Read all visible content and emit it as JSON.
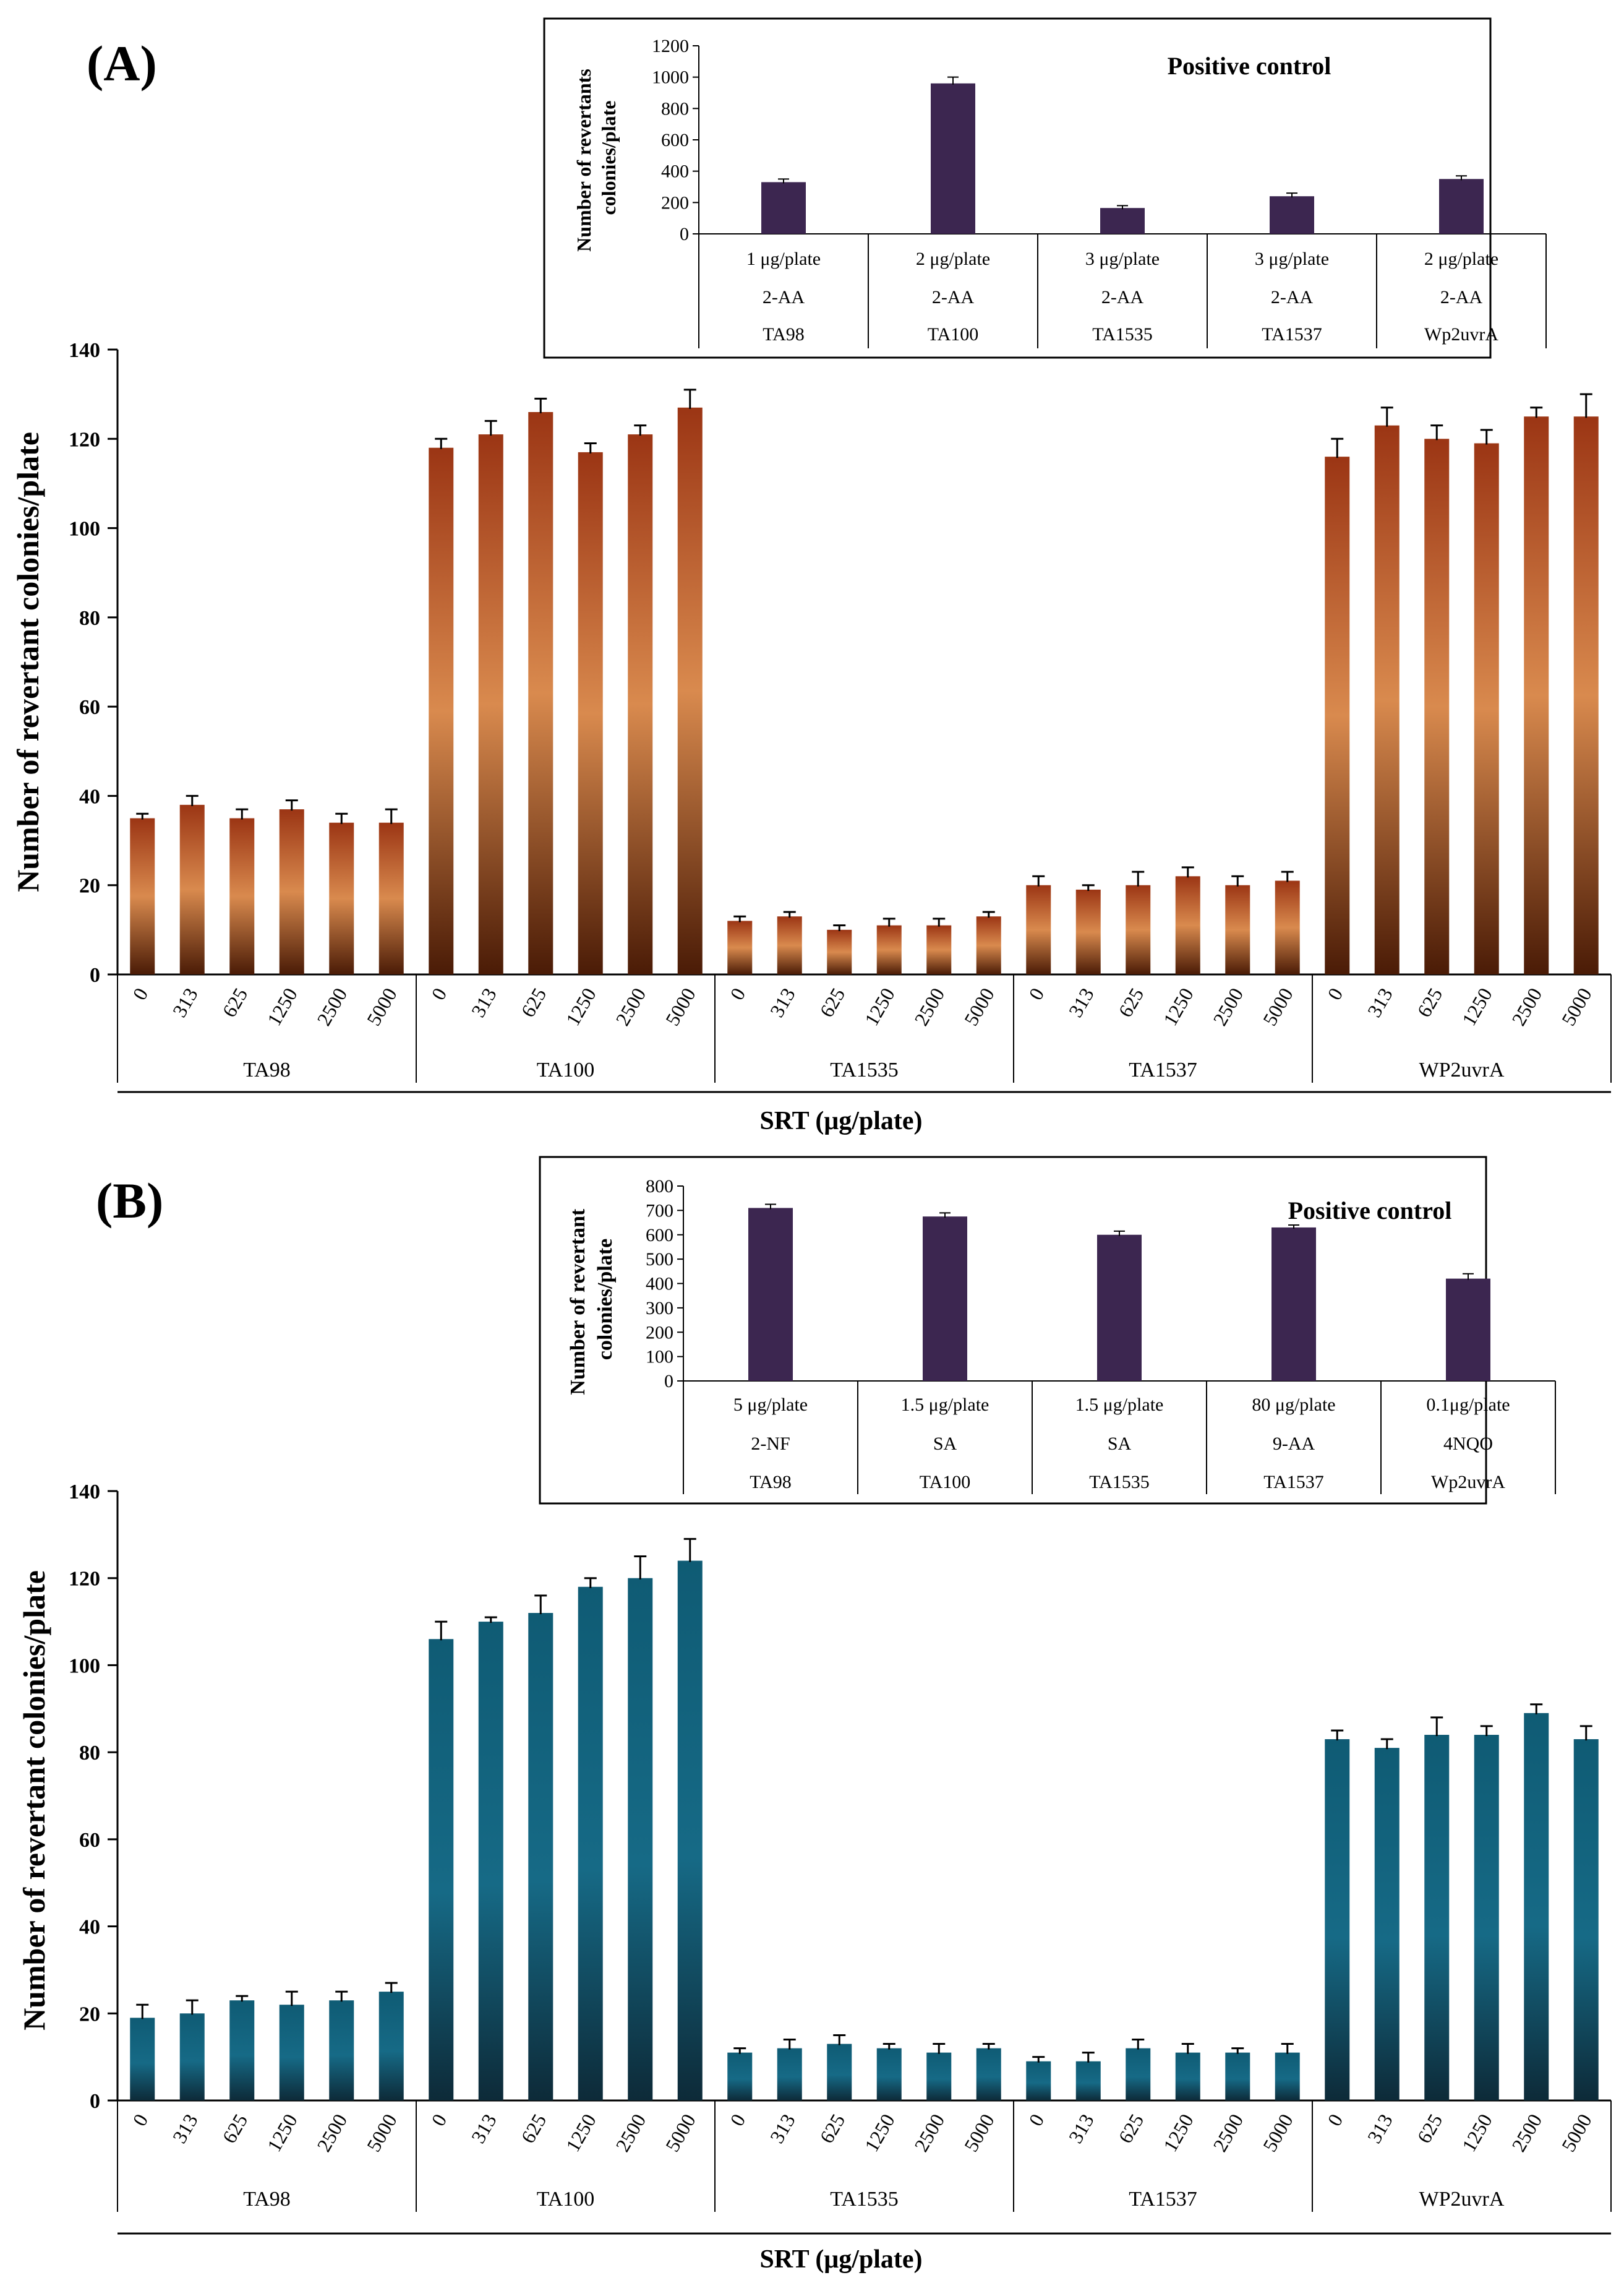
{
  "panels": {
    "A": {
      "letter": "(A)",
      "main": {
        "ylabel": "Number of revertant colonies/plate",
        "xlabel": "SRT (μg/plate)",
        "yticks": [
          0,
          20,
          40,
          60,
          80,
          100,
          120,
          140
        ],
        "ylim": [
          0,
          140
        ]
      },
      "inset": {
        "title": "Positive control",
        "ylabel_line1": "Number  of revertants",
        "ylabel_line2": "colonies/plate",
        "yticks": [
          0,
          200,
          400,
          600,
          800,
          1000,
          1200
        ],
        "ylim": [
          0,
          1200
        ]
      }
    },
    "B": {
      "letter": "(B)",
      "main": {
        "ylabel": "Number of revertant colonies/plate",
        "xlabel": "SRT (μg/plate)",
        "yticks": [
          0,
          20,
          40,
          60,
          80,
          100,
          120,
          140
        ],
        "ylim": [
          0,
          140
        ]
      },
      "inset": {
        "title": "Positive control",
        "ylabel_line1": "Number of revertant",
        "ylabel_line2": "colonies/plate",
        "yticks": [
          0,
          100,
          200,
          300,
          400,
          500,
          600,
          700,
          800
        ],
        "ylim": [
          0,
          800
        ]
      }
    }
  },
  "chart_data": [
    {
      "id": "A-main",
      "type": "bar",
      "title": "",
      "xlabel": "SRT (μg/plate)",
      "ylabel": "Number of revertant colonies/plate",
      "ylim": [
        0,
        140
      ],
      "groups": [
        "TA98",
        "TA100",
        "TA1535",
        "TA1537",
        "WP2uvrA"
      ],
      "doses": [
        "0",
        "313",
        "625",
        "1250",
        "2500",
        "5000"
      ],
      "values": [
        [
          35,
          38,
          35,
          37,
          34,
          34
        ],
        [
          118,
          121,
          126,
          117,
          121,
          127
        ],
        [
          12,
          13,
          10,
          11,
          11,
          13
        ],
        [
          20,
          19,
          20,
          22,
          20,
          21
        ],
        [
          116,
          123,
          120,
          119,
          125,
          125
        ]
      ],
      "errors": [
        [
          1,
          2,
          2,
          2,
          2,
          3
        ],
        [
          2,
          3,
          3,
          2,
          2,
          4
        ],
        [
          1,
          1,
          1,
          1.5,
          1.5,
          1
        ],
        [
          2,
          1,
          3,
          2,
          2,
          2
        ],
        [
          4,
          4,
          3,
          3,
          2,
          5
        ]
      ],
      "colors": {
        "dark": "#4a1b06",
        "mid": "#d98a4e",
        "top": "#9b3514"
      }
    },
    {
      "id": "A-inset",
      "type": "bar",
      "title": "Positive control",
      "ylabel": "Number  of revertants colonies/plate",
      "ylim": [
        0,
        1200
      ],
      "categories": [
        {
          "dose": "1 μg/plate",
          "agent": "2-AA",
          "strain": "TA98"
        },
        {
          "dose": "2 μg/plate",
          "agent": "2-AA",
          "strain": "TA100"
        },
        {
          "dose": "3 μg/plate",
          "agent": "2-AA",
          "strain": "TA1535"
        },
        {
          "dose": "3 μg/plate",
          "agent": "2-AA",
          "strain": "TA1537"
        },
        {
          "dose": "2 μg/plate",
          "agent": "2-AA",
          "strain": "Wp2uvrA"
        }
      ],
      "values": [
        330,
        960,
        165,
        240,
        350
      ],
      "errors": [
        20,
        40,
        15,
        20,
        20
      ],
      "color": "#3c2650"
    },
    {
      "id": "B-main",
      "type": "bar",
      "title": "",
      "xlabel": "SRT (μg/plate)",
      "ylabel": "Number of revertant colonies/plate",
      "ylim": [
        0,
        140
      ],
      "groups": [
        "TA98",
        "TA100",
        "TA1535",
        "TA1537",
        "WP2uvrA"
      ],
      "doses": [
        "0",
        "313",
        "625",
        "1250",
        "2500",
        "5000"
      ],
      "values": [
        [
          19,
          20,
          23,
          22,
          23,
          25
        ],
        [
          106,
          110,
          112,
          118,
          120,
          124
        ],
        [
          11,
          12,
          13,
          12,
          11,
          12
        ],
        [
          9,
          9,
          12,
          11,
          11,
          11
        ],
        [
          83,
          81,
          84,
          84,
          89,
          83
        ]
      ],
      "errors": [
        [
          3,
          3,
          1,
          3,
          2,
          2
        ],
        [
          4,
          1,
          4,
          2,
          5,
          5
        ],
        [
          1,
          2,
          2,
          1,
          2,
          1
        ],
        [
          1,
          2,
          2,
          2,
          1,
          2
        ],
        [
          2,
          2,
          4,
          2,
          2,
          3
        ]
      ],
      "colors": {
        "dark": "#0d2a38",
        "mid": "#166a86",
        "top": "#0f5b74"
      }
    },
    {
      "id": "B-inset",
      "type": "bar",
      "title": "Positive control",
      "ylabel": "Number of revertant colonies/plate",
      "ylim": [
        0,
        800
      ],
      "categories": [
        {
          "dose": "5 μg/plate",
          "agent": "2-NF",
          "strain": "TA98"
        },
        {
          "dose": "1.5 μg/plate",
          "agent": "SA",
          "strain": "TA100"
        },
        {
          "dose": "1.5 μg/plate",
          "agent": "SA",
          "strain": "TA1535"
        },
        {
          "dose": "80 μg/plate",
          "agent": "9-AA",
          "strain": "TA1537"
        },
        {
          "dose": "0.1μg/plate",
          "agent": "4NQO",
          "strain": "Wp2uvrA"
        }
      ],
      "values": [
        710,
        675,
        600,
        630,
        420
      ],
      "errors": [
        15,
        15,
        15,
        10,
        20
      ],
      "color": "#3c2650"
    }
  ]
}
